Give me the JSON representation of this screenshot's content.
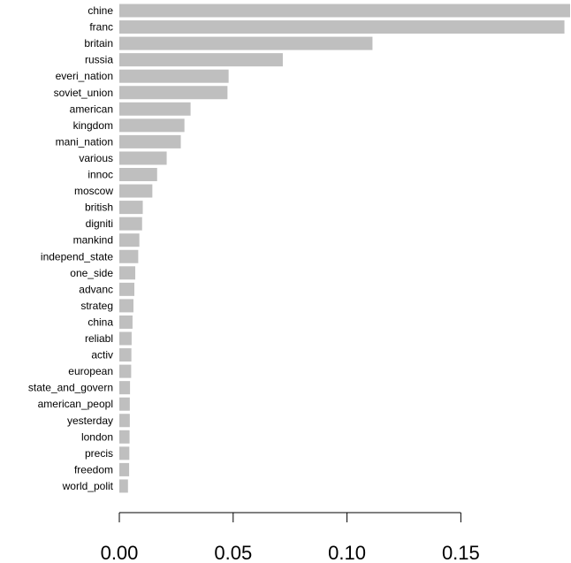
{
  "chart_data": {
    "type": "bar",
    "orientation": "horizontal",
    "categories": [
      "chine",
      "franc",
      "britain",
      "russia",
      "everi_nation",
      "soviet_union",
      "american",
      "kingdom",
      "mani_nation",
      "various",
      "innoc",
      "moscow",
      "british",
      "digniti",
      "mankind",
      "independ_state",
      "one_side",
      "advanc",
      "strateg",
      "china",
      "reliabl",
      "activ",
      "european",
      "state_and_govern",
      "american_peopl",
      "yesterday",
      "london",
      "precis",
      "freedom",
      "world_polit"
    ],
    "values": [
      0.198,
      0.1955,
      0.1112,
      0.0718,
      0.048,
      0.0475,
      0.0313,
      0.0286,
      0.027,
      0.0208,
      0.0166,
      0.0145,
      0.0103,
      0.01,
      0.0088,
      0.0083,
      0.007,
      0.0066,
      0.0062,
      0.0058,
      0.0054,
      0.0053,
      0.0052,
      0.0047,
      0.0046,
      0.0046,
      0.0045,
      0.0044,
      0.0043,
      0.0038
    ],
    "bar_color": "#bfbfbf",
    "xlim": [
      0,
      0.198
    ],
    "xticks": [
      0,
      0.05,
      0.1,
      0.15
    ],
    "xtick_labels": [
      "0.00",
      "0.05",
      "0.10",
      "0.15"
    ],
    "title": "",
    "xlabel": "",
    "ylabel": "",
    "grid": false,
    "legend": "none"
  }
}
